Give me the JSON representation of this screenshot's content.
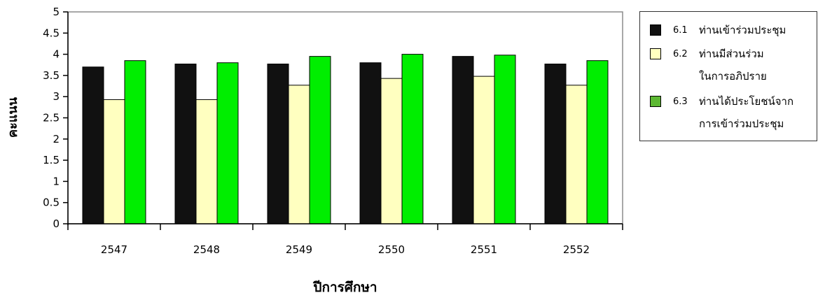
{
  "chart_data": {
    "type": "bar",
    "categories": [
      "2547",
      "2548",
      "2549",
      "2550",
      "2551",
      "2552"
    ],
    "series": [
      {
        "name": "ท่านเข้าร่วมประชุม",
        "code": "6.1",
        "color": "#111111",
        "values": [
          3.7,
          3.77,
          3.77,
          3.8,
          3.95,
          3.77
        ]
      },
      {
        "name": "ท่านมีส่วนร่วม ในการอภิปราย",
        "code": "6.2",
        "color": "#ffffc0",
        "values": [
          2.93,
          2.93,
          3.27,
          3.43,
          3.48,
          3.27
        ]
      },
      {
        "name": "ท่านได้ประโยชน์จาก การเข้าร่วมประชุม",
        "code": "6.3",
        "color": "#00ee00",
        "legend_color": "#5cb832",
        "values": [
          3.85,
          3.8,
          3.95,
          4.0,
          3.98,
          3.85
        ]
      }
    ],
    "xlabel": "ปีการศึกษา",
    "ylabel": "คะแนน",
    "ylim": [
      0,
      5
    ],
    "yticks": [
      "0",
      "0.5",
      "1",
      "1.5",
      "2",
      "2.5",
      "3",
      "3.5",
      "4",
      "4.5",
      "5"
    ],
    "grid": false,
    "legend_position": "right"
  },
  "legend": {
    "items": [
      {
        "code": "6.1",
        "lines": [
          "ท่านเข้าร่วมประชุม"
        ]
      },
      {
        "code": "6.2",
        "lines": [
          "ท่านมีส่วนร่วม",
          "ในการอภิปราย"
        ]
      },
      {
        "code": "6.3",
        "lines": [
          "ท่านได้ประโยชน์จาก",
          "การเข้าร่วมประชุม"
        ]
      }
    ]
  }
}
